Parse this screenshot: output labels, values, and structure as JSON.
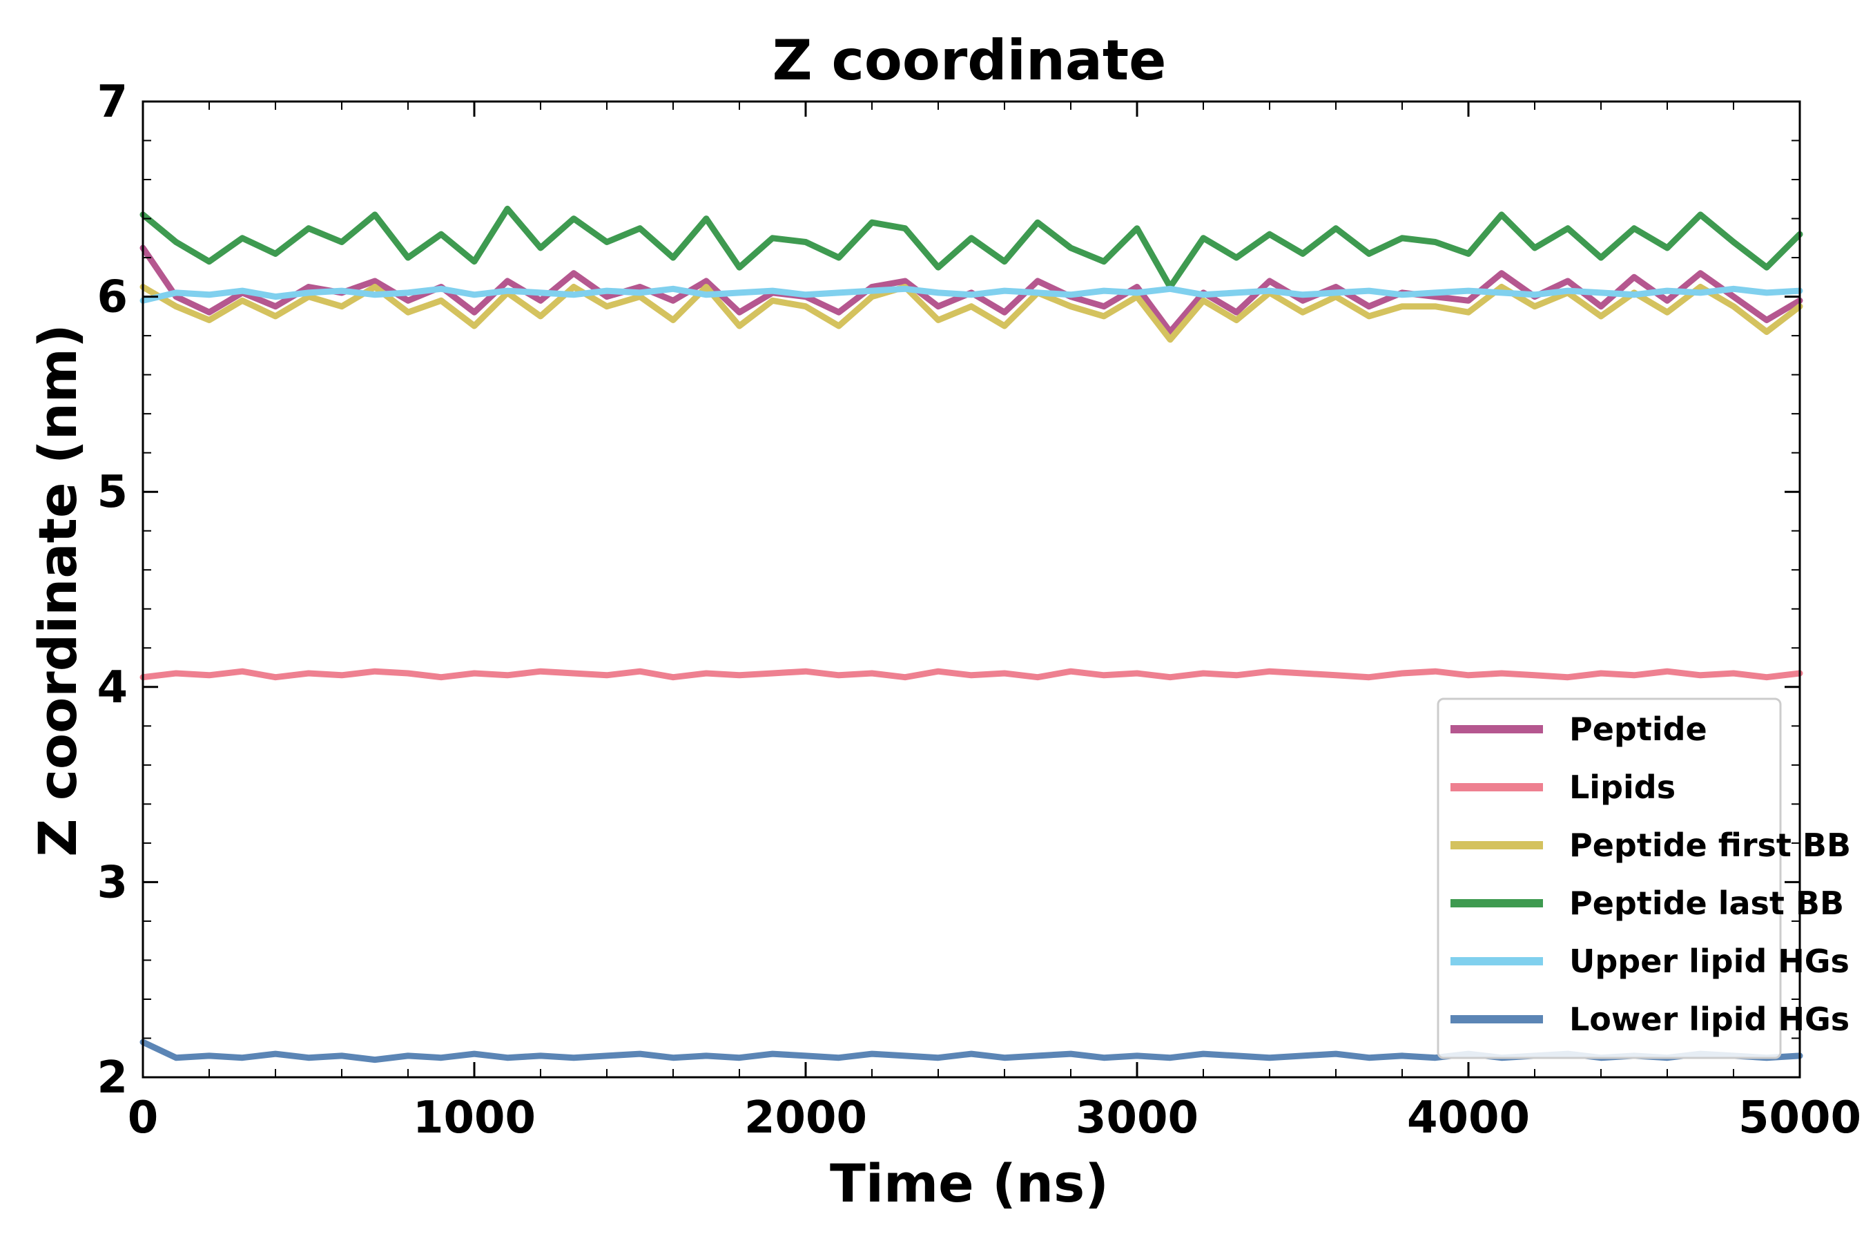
{
  "chart_data": {
    "type": "line",
    "title": "Z coordinate",
    "xlabel": "Time (ns)",
    "ylabel": "Z coordinate (nm)",
    "xlim": [
      0,
      5000
    ],
    "ylim": [
      2,
      7
    ],
    "xticks": [
      0,
      1000,
      2000,
      3000,
      4000,
      5000
    ],
    "yticks": [
      2,
      3,
      4,
      5,
      6,
      7
    ],
    "grid": false,
    "legend_position": "bottom-right",
    "x": [
      0,
      100,
      200,
      300,
      400,
      500,
      600,
      700,
      800,
      900,
      1000,
      1100,
      1200,
      1300,
      1400,
      1500,
      1600,
      1700,
      1800,
      1900,
      2000,
      2100,
      2200,
      2300,
      2400,
      2500,
      2600,
      2700,
      2800,
      2900,
      3000,
      3100,
      3200,
      3300,
      3400,
      3500,
      3600,
      3700,
      3800,
      3900,
      4000,
      4100,
      4200,
      4300,
      4400,
      4500,
      4600,
      4700,
      4800,
      4900,
      5000
    ],
    "series": [
      {
        "name": "Peptide",
        "color": "#b5578f",
        "values": [
          6.25,
          6.0,
          5.92,
          6.02,
          5.95,
          6.05,
          6.02,
          6.08,
          5.98,
          6.05,
          5.92,
          6.08,
          5.98,
          6.12,
          6.0,
          6.05,
          5.98,
          6.08,
          5.92,
          6.02,
          6.0,
          5.92,
          6.05,
          6.08,
          5.95,
          6.02,
          5.92,
          6.08,
          6.0,
          5.95,
          6.05,
          5.82,
          6.02,
          5.92,
          6.08,
          5.98,
          6.05,
          5.95,
          6.02,
          6.0,
          5.98,
          6.12,
          6.0,
          6.08,
          5.95,
          6.1,
          5.98,
          6.12,
          6.0,
          5.88,
          5.98
        ]
      },
      {
        "name": "Lipids",
        "color": "#ee8090",
        "values": [
          4.05,
          4.07,
          4.06,
          4.08,
          4.05,
          4.07,
          4.06,
          4.08,
          4.07,
          4.05,
          4.07,
          4.06,
          4.08,
          4.07,
          4.06,
          4.08,
          4.05,
          4.07,
          4.06,
          4.07,
          4.08,
          4.06,
          4.07,
          4.05,
          4.08,
          4.06,
          4.07,
          4.05,
          4.08,
          4.06,
          4.07,
          4.05,
          4.07,
          4.06,
          4.08,
          4.07,
          4.06,
          4.05,
          4.07,
          4.08,
          4.06,
          4.07,
          4.06,
          4.05,
          4.07,
          4.06,
          4.08,
          4.06,
          4.07,
          4.05,
          4.07
        ]
      },
      {
        "name": "Peptide first BB",
        "color": "#d4c25e",
        "values": [
          6.05,
          5.95,
          5.88,
          5.98,
          5.9,
          6.0,
          5.95,
          6.05,
          5.92,
          5.98,
          5.85,
          6.02,
          5.9,
          6.05,
          5.95,
          6.0,
          5.88,
          6.05,
          5.85,
          5.98,
          5.95,
          5.85,
          6.0,
          6.05,
          5.88,
          5.95,
          5.85,
          6.02,
          5.95,
          5.9,
          6.0,
          5.78,
          5.98,
          5.88,
          6.02,
          5.92,
          6.0,
          5.9,
          5.95,
          5.95,
          5.92,
          6.05,
          5.95,
          6.02,
          5.9,
          6.02,
          5.92,
          6.05,
          5.95,
          5.82,
          5.95
        ]
      },
      {
        "name": "Peptide last BB",
        "color": "#3e9a50",
        "values": [
          6.42,
          6.28,
          6.18,
          6.3,
          6.22,
          6.35,
          6.28,
          6.42,
          6.2,
          6.32,
          6.18,
          6.45,
          6.25,
          6.4,
          6.28,
          6.35,
          6.2,
          6.4,
          6.15,
          6.3,
          6.28,
          6.2,
          6.38,
          6.35,
          6.15,
          6.3,
          6.18,
          6.38,
          6.25,
          6.18,
          6.35,
          6.05,
          6.3,
          6.2,
          6.32,
          6.22,
          6.35,
          6.22,
          6.3,
          6.28,
          6.22,
          6.42,
          6.25,
          6.35,
          6.2,
          6.35,
          6.25,
          6.42,
          6.28,
          6.15,
          6.32
        ]
      },
      {
        "name": "Upper lipid HGs",
        "color": "#80d0ee",
        "values": [
          5.98,
          6.02,
          6.01,
          6.03,
          6.0,
          6.02,
          6.03,
          6.01,
          6.02,
          6.04,
          6.01,
          6.03,
          6.02,
          6.01,
          6.03,
          6.02,
          6.04,
          6.01,
          6.02,
          6.03,
          6.01,
          6.02,
          6.03,
          6.04,
          6.02,
          6.01,
          6.03,
          6.02,
          6.01,
          6.03,
          6.02,
          6.04,
          6.01,
          6.02,
          6.03,
          6.01,
          6.02,
          6.03,
          6.01,
          6.02,
          6.03,
          6.02,
          6.01,
          6.03,
          6.02,
          6.01,
          6.03,
          6.02,
          6.04,
          6.02,
          6.03
        ]
      },
      {
        "name": "Lower lipid HGs",
        "color": "#5b85b5",
        "values": [
          2.18,
          2.1,
          2.11,
          2.1,
          2.12,
          2.1,
          2.11,
          2.09,
          2.11,
          2.1,
          2.12,
          2.1,
          2.11,
          2.1,
          2.11,
          2.12,
          2.1,
          2.11,
          2.1,
          2.12,
          2.11,
          2.1,
          2.12,
          2.11,
          2.1,
          2.12,
          2.1,
          2.11,
          2.12,
          2.1,
          2.11,
          2.1,
          2.12,
          2.11,
          2.1,
          2.11,
          2.12,
          2.1,
          2.11,
          2.1,
          2.12,
          2.1,
          2.11,
          2.12,
          2.1,
          2.11,
          2.1,
          2.12,
          2.11,
          2.1,
          2.11
        ]
      }
    ]
  }
}
